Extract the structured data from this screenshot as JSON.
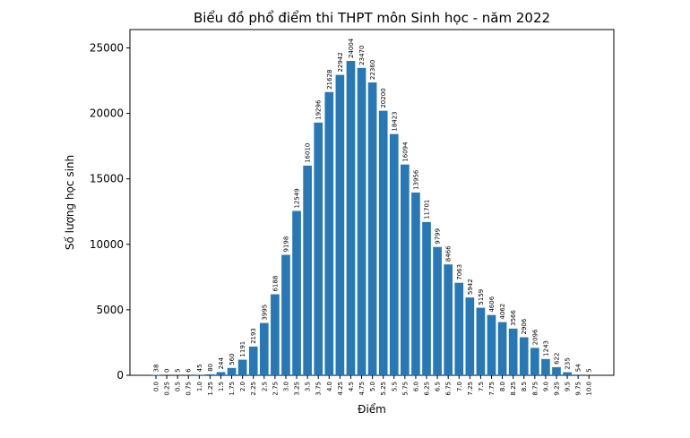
{
  "chart_data": {
    "type": "bar",
    "title": "Biểu đồ phổ điểm thi THPT môn Sinh học - năm 2022",
    "x_label": "Điểm",
    "y_label": "Số lượng học sinh",
    "categories": [
      "0.0",
      "0.25",
      "0.5",
      "0.75",
      "1.0",
      "1.25",
      "1.5",
      "1.75",
      "2.0",
      "2.25",
      "2.5",
      "2.75",
      "3.0",
      "3.25",
      "3.5",
      "3.75",
      "4.0",
      "4.25",
      "4.5",
      "4.75",
      "5.0",
      "5.25",
      "5.5",
      "5.75",
      "6.0",
      "6.25",
      "6.5",
      "6.75",
      "7.0",
      "7.25",
      "7.5",
      "7.75",
      "8.0",
      "8.25",
      "8.5",
      "8.75",
      "9.0",
      "9.25",
      "9.5",
      "9.75",
      "10.0"
    ],
    "values": [
      38,
      0,
      5,
      6,
      45,
      80,
      244,
      560,
      1191,
      2193,
      3995,
      6188,
      9198,
      12549,
      16010,
      19296,
      21628,
      22942,
      24004,
      23470,
      22360,
      20200,
      18423,
      16094,
      13956,
      11701,
      9799,
      8466,
      7063,
      5942,
      5159,
      4606,
      4062,
      3566,
      2906,
      2096,
      1243,
      622,
      235,
      54,
      5
    ],
    "color": "#2878b5",
    "ylim": [
      0,
      26400
    ],
    "yticks": [
      0,
      5000,
      10000,
      15000,
      20000,
      25000
    ],
    "grid": false
  }
}
